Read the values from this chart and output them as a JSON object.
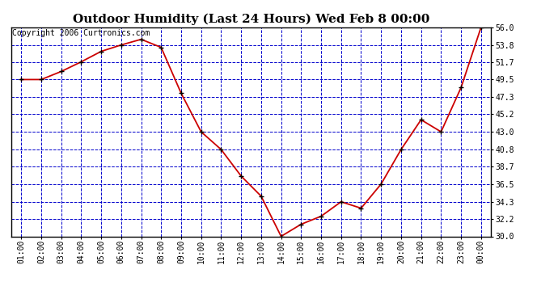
{
  "title": "Outdoor Humidity (Last 24 Hours) Wed Feb 8 00:00",
  "copyright_text": "Copyright 2006 Curtronics.com",
  "x_labels": [
    "01:00",
    "02:00",
    "03:00",
    "04:00",
    "05:00",
    "06:00",
    "07:00",
    "08:00",
    "09:00",
    "10:00",
    "11:00",
    "12:00",
    "13:00",
    "14:00",
    "15:00",
    "16:00",
    "17:00",
    "18:00",
    "19:00",
    "20:00",
    "21:00",
    "22:00",
    "23:00",
    "00:00"
  ],
  "y_values": [
    49.5,
    49.5,
    50.5,
    51.7,
    53.0,
    53.8,
    54.5,
    53.5,
    47.8,
    43.0,
    40.8,
    37.5,
    35.0,
    30.0,
    31.5,
    32.5,
    34.3,
    33.5,
    36.5,
    40.8,
    44.5,
    43.0,
    48.5,
    56.0
  ],
  "ylim": [
    30.0,
    56.0
  ],
  "yticks": [
    30.0,
    32.2,
    34.3,
    36.5,
    38.7,
    40.8,
    43.0,
    45.2,
    47.3,
    49.5,
    51.7,
    53.8,
    56.0
  ],
  "line_color": "#cc0000",
  "marker_color": "#000000",
  "plot_bg_color": "#ffffff",
  "fig_bg_color": "#ffffff",
  "grid_color": "#0000cc",
  "title_color": "#000000",
  "title_fontsize": 11,
  "tick_fontsize": 7,
  "copyright_fontsize": 7
}
